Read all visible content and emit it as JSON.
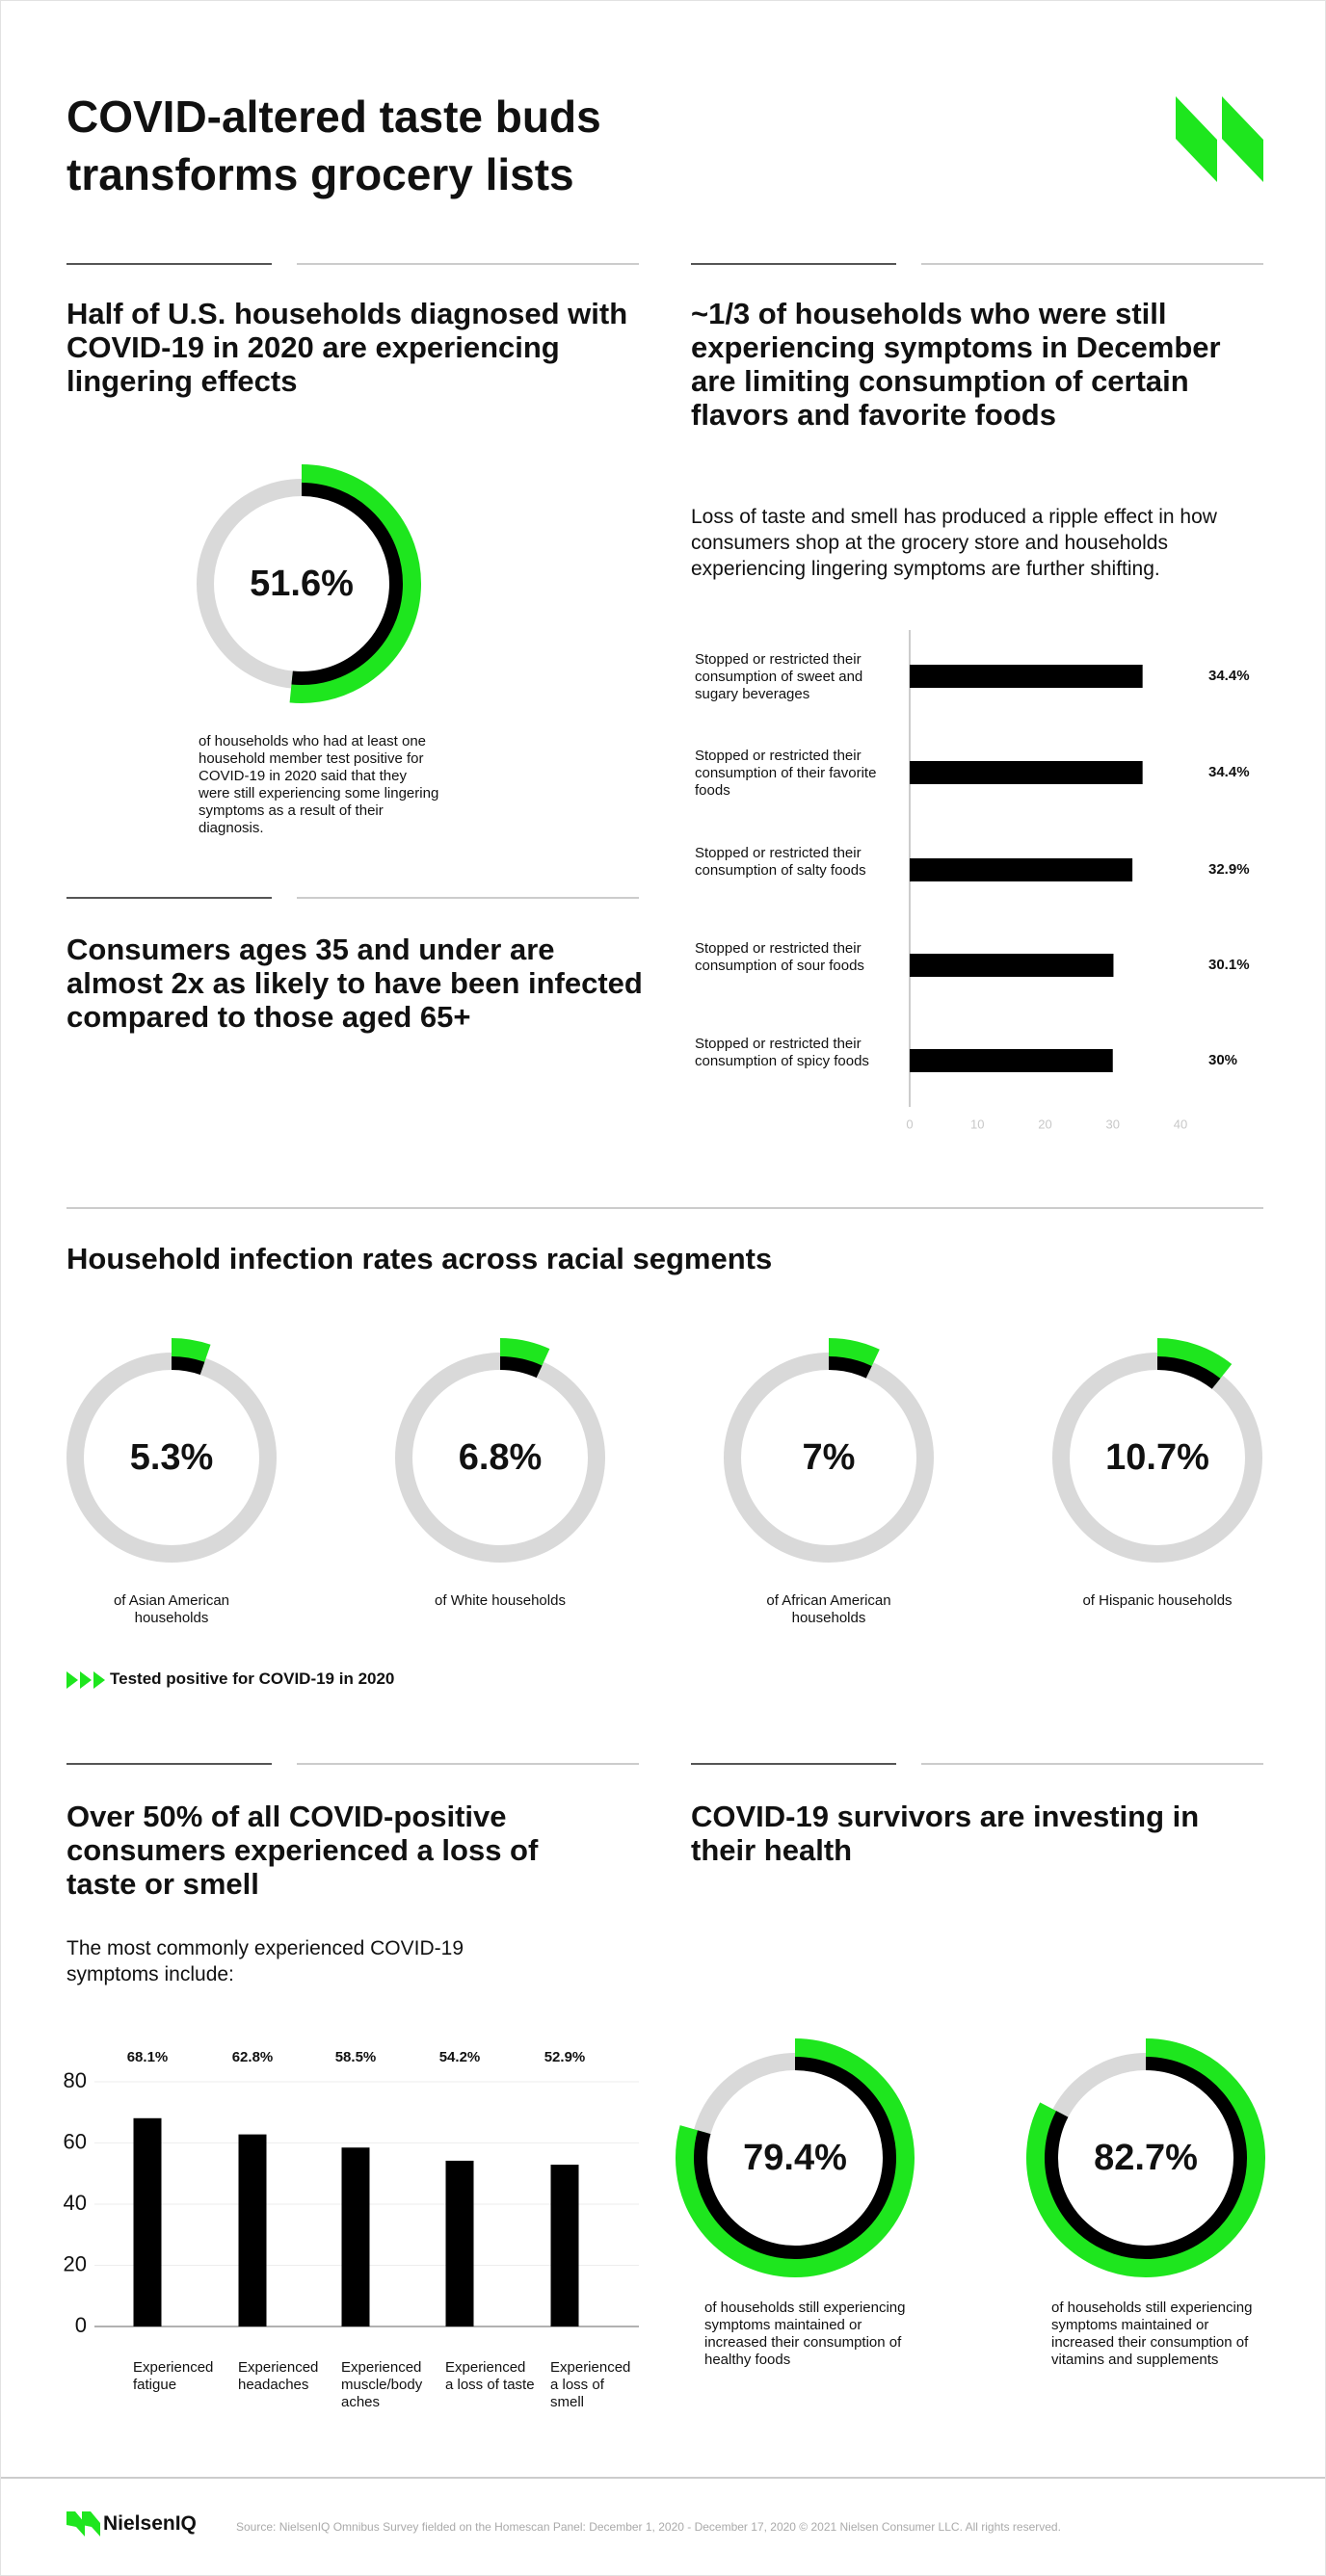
{
  "title": "COVID-altered taste buds transforms grocery lists",
  "callout": "Consumers ages 35 and under are almost 2x as likely to have been infected compared to those aged 65+",
  "chart_data": [
    {
      "type": "donut",
      "title": "Half of U.S. households diagnosed with COVID-19 in 2020 are experiencing lingering effects",
      "categories": [
        "of households who had at least one household member test positive for COVID-19 in 2020 said that they were still experiencing some lingering symptoms as a result of their diagnosis."
      ],
      "values": [
        51.6
      ],
      "value_labels": [
        "51.6%"
      ],
      "color": "#1ee61e",
      "inner_color": "#000000",
      "track_color": "#d9d9d9"
    },
    {
      "type": "barh",
      "title": "~1/3 of households who were still experiencing symptoms in December are limiting consumption of certain flavors and favorite foods",
      "subtitle": "Loss of taste and smell has produced a ripple effect in how consumers shop at the grocery store and households experiencing lingering symptoms are further shifting.",
      "categories": [
        "Stopped or restricted their consumption of sweet and sugary beverages",
        "Stopped or restricted their consumption of their favorite foods",
        "Stopped or restricted their consumption of salty foods",
        "Stopped or restricted their consumption of sour foods",
        "Stopped or restricted their consumption of spicy foods"
      ],
      "values": [
        34.4,
        34.4,
        32.9,
        30.1,
        30
      ],
      "value_labels": [
        "34.4%",
        "34.4%",
        "32.9%",
        "30.1%",
        "30%"
      ],
      "xlim": [
        0,
        40
      ],
      "xticks": [
        0,
        10,
        20,
        30,
        40
      ],
      "color": "#000000"
    },
    {
      "type": "donut",
      "title": "Household infection rates across racial segments",
      "categories": [
        "of Asian American households",
        "of White households",
        "of African American households",
        "of Hispanic households"
      ],
      "values": [
        5.3,
        6.8,
        7,
        10.7
      ],
      "value_labels": [
        "5.3%",
        "6.8%",
        "7%",
        "10.7%"
      ],
      "series_name": "Tested positive for COVID-19 in 2020",
      "color": "#1ee61e",
      "inner_color": "#000000",
      "track_color": "#d9d9d9"
    },
    {
      "type": "bar",
      "title": "Over 50% of all COVID-positive consumers experienced a loss of taste or smell",
      "subtitle": "The most commonly experienced COVID-19 symptoms include:",
      "categories": [
        "Experienced fatigue",
        "Experienced headaches",
        "Experienced muscle/body aches",
        "Experienced a loss of taste",
        "Experienced a loss of smell"
      ],
      "values": [
        68.1,
        62.8,
        58.5,
        54.2,
        52.9
      ],
      "value_labels": [
        "68.1%",
        "62.8%",
        "58.5%",
        "54.2%",
        "52.9%"
      ],
      "ylim": [
        0,
        80
      ],
      "yticks": [
        0,
        20,
        40,
        60,
        80
      ],
      "grid": true,
      "color": "#000000"
    },
    {
      "type": "donut",
      "title": "COVID-19 survivors are investing in their health",
      "categories": [
        "of households still experiencing symptoms maintained or increased their consumption of healthy foods",
        "of households still experiencing symptoms maintained or increased their consumption of vitamins and supplements"
      ],
      "values": [
        79.4,
        82.7
      ],
      "value_labels": [
        "79.4%",
        "82.7%"
      ],
      "color": "#1ee61e",
      "inner_color": "#000000",
      "track_color": "#d9d9d9"
    }
  ],
  "footer": {
    "brand": "NielsenIQ",
    "source": "Source: NielsenIQ Omnibus Survey fielded on the Homescan Panel: December 1, 2020 - December 17, 2020 © 2021 Nielsen Consumer LLC. All rights reserved."
  }
}
